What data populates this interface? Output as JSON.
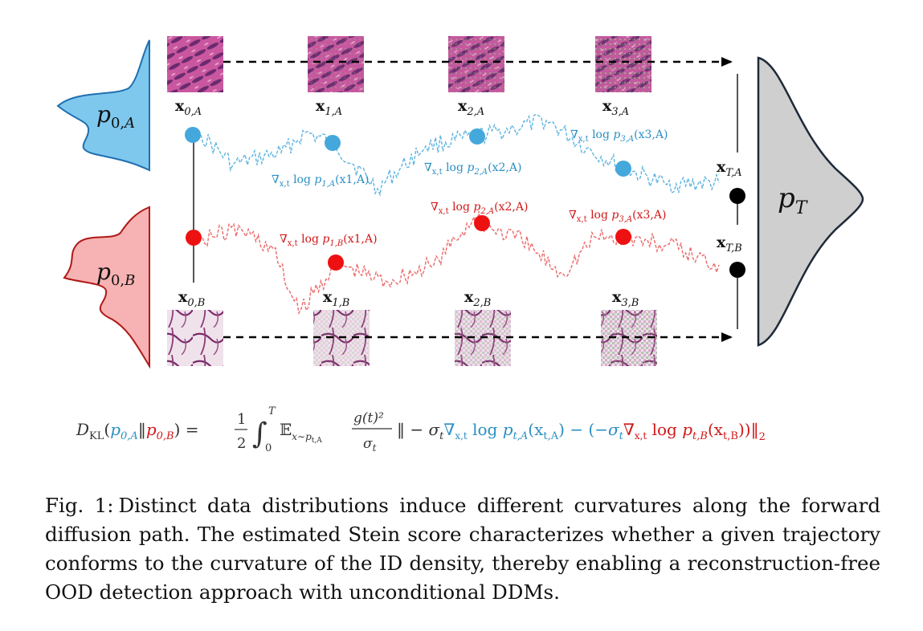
{
  "figure": {
    "dist_A_label": "p0,A",
    "dist_B_label": "p0,B",
    "dist_T_label": "pT",
    "top_labels": [
      {
        "base": "x",
        "sub": "0,A"
      },
      {
        "base": "x",
        "sub": "1,A"
      },
      {
        "base": "x",
        "sub": "2,A"
      },
      {
        "base": "x",
        "sub": "3,A"
      }
    ],
    "bottom_labels": [
      {
        "base": "x",
        "sub": "0,B"
      },
      {
        "base": "x",
        "sub": "1,B"
      },
      {
        "base": "x",
        "sub": "2,B"
      },
      {
        "base": "x",
        "sub": "3,B"
      }
    ],
    "terminal_label_A": {
      "base": "x",
      "sub": "T,A"
    },
    "terminal_label_B": {
      "base": "x",
      "sub": "T,B"
    },
    "scores_A": [
      {
        "sub_grad": "x,t",
        "text": "log p",
        "sub": "1,A",
        "arg": "(x1,A)"
      },
      {
        "sub_grad": "x,t",
        "text": "log p",
        "sub": "2,A",
        "arg": "(x2,A)"
      },
      {
        "sub_grad": "x,t",
        "text": "log p",
        "sub": "3,A",
        "arg": "(x3,A)"
      }
    ],
    "scores_B": [
      {
        "sub_grad": "x,t",
        "text": "log p",
        "sub": "1,B",
        "arg": "(x1,A)"
      },
      {
        "sub_grad": "x,t",
        "text": "log p",
        "sub": "2,A",
        "arg": "(x2,A)"
      },
      {
        "sub_grad": "x,t",
        "text": "log p",
        "sub": "3,A",
        "arg": "(x3,A)"
      }
    ],
    "colors": {
      "blue_fill": "#7ec8ee",
      "blue_line": "#1f6fb0",
      "blue_dot": "#45a8dc",
      "red_fill": "#f7b3b3",
      "red_line": "#b01818",
      "red_dot": "#ee1111",
      "gray_fill": "#cfcfcf",
      "score_blue": "#2a8fc4",
      "score_red": "#d01818"
    }
  },
  "equation": {
    "lhs": "D",
    "lhs_sub": "KL",
    "p_A": "p0,A",
    "p_B": "p0,B",
    "frac_num": "1",
    "frac_den": "2",
    "int_upper": "T",
    "int_lower": "0",
    "expect": "E",
    "expect_sub": "x∼pt,A",
    "g_num": "g(t)²",
    "g_den": "σt",
    "sigma": "σt",
    "score_A": "∇x,t log pt,A(xt,A)",
    "score_B": "∇x,t log pt,B(xt,B)",
    "norm_sub": "2"
  },
  "caption": {
    "label": "Fig. 1:",
    "text": "Distinct data distributions induce different curvatures along the forward diffusion path. The estimated Stein score characterizes whether a given trajectory conforms to the curvature of the ID density, thereby enabling a reconstruction-free OOD detection approach with unconditional DDMs."
  }
}
